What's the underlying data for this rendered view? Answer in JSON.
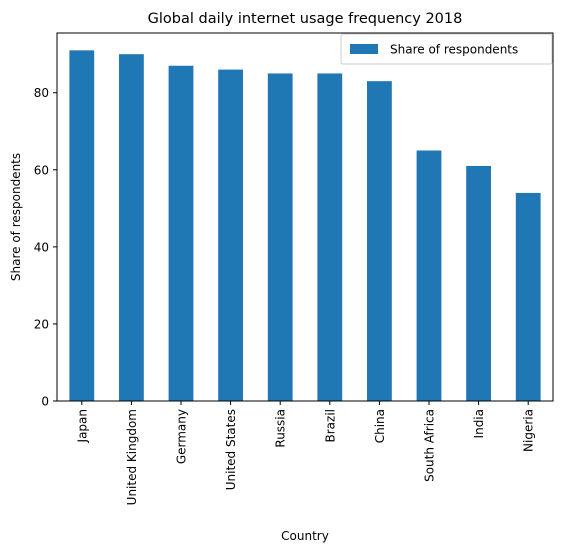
{
  "chart_data": {
    "type": "bar",
    "title": "Global daily internet usage frequency 2018",
    "xlabel": "Country",
    "ylabel": "Share of respondents",
    "categories": [
      "Japan",
      "United Kingdom",
      "Germany",
      "United States",
      "Russia",
      "Brazil",
      "China",
      "South Africa",
      "India",
      "Nigeria"
    ],
    "series": [
      {
        "name": "Share of respondents",
        "color": "#1f77b4",
        "values": [
          91,
          90,
          87,
          86,
          85,
          85,
          83,
          65,
          61,
          54
        ]
      }
    ],
    "ylim": [
      0,
      95.5
    ],
    "yticks": [
      0,
      20,
      40,
      60,
      80
    ],
    "grid": false,
    "legend": "top-right"
  }
}
